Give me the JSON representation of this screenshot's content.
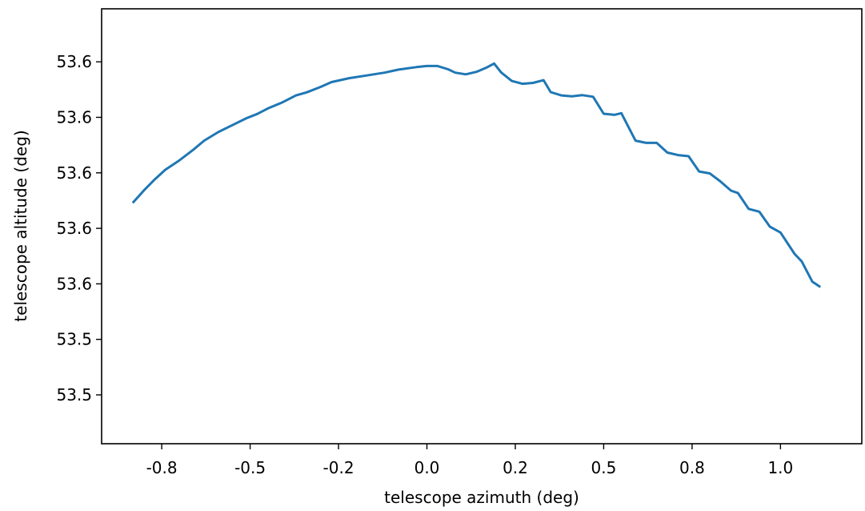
{
  "chart_data": {
    "type": "line",
    "title": "",
    "xlabel": "telescope azimuth (deg)",
    "ylabel": "telescope altitude (deg)",
    "grid": false,
    "legend": "none",
    "xlim": [
      -0.92,
      1.23
    ],
    "ylim": [
      53.4574,
      53.6141
    ],
    "x_ticks": [
      {
        "value": -0.75,
        "label": "-0.8"
      },
      {
        "value": -0.5,
        "label": "-0.5"
      },
      {
        "value": -0.25,
        "label": "-0.2"
      },
      {
        "value": 0.0,
        "label": "0.0"
      },
      {
        "value": 0.25,
        "label": "0.2"
      },
      {
        "value": 0.5,
        "label": "0.5"
      },
      {
        "value": 0.75,
        "label": "0.8"
      },
      {
        "value": 1.0,
        "label": "1.0"
      }
    ],
    "y_ticks": [
      {
        "value": 53.475,
        "label": "53.5"
      },
      {
        "value": 53.495,
        "label": "53.5"
      },
      {
        "value": 53.515,
        "label": "53.6"
      },
      {
        "value": 53.535,
        "label": "53.6"
      },
      {
        "value": 53.555,
        "label": "53.6"
      },
      {
        "value": 53.575,
        "label": "53.6"
      },
      {
        "value": 53.595,
        "label": "53.6"
      }
    ],
    "series": [
      {
        "color": "#1f77b4",
        "x": [
          -0.83,
          -0.8,
          -0.77,
          -0.74,
          -0.7,
          -0.66,
          -0.63,
          -0.59,
          -0.55,
          -0.51,
          -0.48,
          -0.45,
          -0.41,
          -0.37,
          -0.34,
          -0.3,
          -0.27,
          -0.22,
          -0.17,
          -0.12,
          -0.08,
          -0.03,
          0.0,
          0.03,
          0.06,
          0.08,
          0.11,
          0.14,
          0.17,
          0.19,
          0.21,
          0.24,
          0.27,
          0.3,
          0.33,
          0.35,
          0.38,
          0.41,
          0.44,
          0.47,
          0.5,
          0.53,
          0.55,
          0.59,
          0.62,
          0.65,
          0.68,
          0.71,
          0.74,
          0.77,
          0.8,
          0.83,
          0.86,
          0.88,
          0.91,
          0.94,
          0.97,
          1.0,
          1.04,
          1.06,
          1.09,
          1.11
        ],
        "y": [
          53.5445,
          53.5487,
          53.5526,
          53.5561,
          53.5595,
          53.5634,
          53.5666,
          53.5697,
          53.5722,
          53.5747,
          53.5762,
          53.5782,
          53.5803,
          53.5829,
          53.584,
          53.586,
          53.5877,
          53.5891,
          53.5901,
          53.5911,
          53.5922,
          53.5931,
          53.5935,
          53.5935,
          53.5923,
          53.5911,
          53.5905,
          53.5914,
          53.593,
          53.5944,
          53.5912,
          53.5881,
          53.5871,
          53.5874,
          53.5884,
          53.5841,
          53.5829,
          53.5826,
          53.583,
          53.5824,
          53.5763,
          53.5759,
          53.5765,
          53.5666,
          53.5658,
          53.5658,
          53.5623,
          53.5614,
          53.561,
          53.5555,
          53.5548,
          53.5519,
          53.5486,
          53.5477,
          53.542,
          53.541,
          53.5356,
          53.5335,
          53.5258,
          53.5231,
          53.5158,
          53.5141
        ]
      }
    ]
  }
}
